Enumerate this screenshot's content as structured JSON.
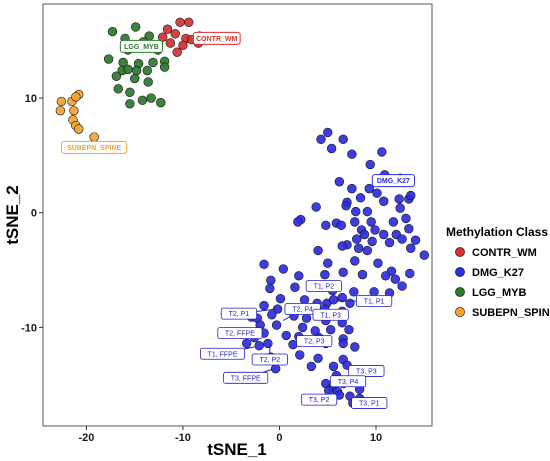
{
  "chart_data": {
    "type": "scatter",
    "xlabel": "tSNE_1",
    "ylabel": "tSNE_2",
    "xlim": [
      -24.5,
      15.8
    ],
    "ylim": [
      -18.6,
      18.2
    ],
    "xticks": [
      -20,
      -10,
      0,
      10
    ],
    "yticks": [
      -10,
      0,
      10
    ],
    "grid": false,
    "legend": {
      "title": "Methylation Class",
      "position": "right"
    },
    "series": [
      {
        "name": "CONTR_WM",
        "color": "#d62f2f",
        "points": [
          [
            -11.6,
            16.0
          ],
          [
            -10.3,
            16.6
          ],
          [
            -9.4,
            16.6
          ],
          [
            -12.1,
            15.3
          ],
          [
            -10.8,
            15.6
          ],
          [
            -9.7,
            15.2
          ],
          [
            -8.3,
            15.4
          ],
          [
            -11.3,
            14.8
          ],
          [
            -10.0,
            14.6
          ],
          [
            -9.1,
            15.1
          ],
          [
            -8.4,
            14.8
          ],
          [
            -10.6,
            14.0
          ]
        ]
      },
      {
        "name": "LGG_MYB",
        "color": "#2b7a2b",
        "points": [
          [
            -17.3,
            15.8
          ],
          [
            -14.9,
            16.2
          ],
          [
            -13.5,
            15.4
          ],
          [
            -16.0,
            15.2
          ],
          [
            -14.1,
            14.9
          ],
          [
            -15.7,
            14.2
          ],
          [
            -12.6,
            14.2
          ],
          [
            -17.7,
            13.4
          ],
          [
            -16.2,
            13.1
          ],
          [
            -14.6,
            13.0
          ],
          [
            -13.1,
            13.1
          ],
          [
            -11.9,
            13.2
          ],
          [
            -16.3,
            12.4
          ],
          [
            -15.7,
            12.5
          ],
          [
            -14.8,
            12.4
          ],
          [
            -13.7,
            12.4
          ],
          [
            -11.9,
            12.7
          ],
          [
            -16.9,
            11.9
          ],
          [
            -15.0,
            11.7
          ],
          [
            -13.6,
            11.4
          ],
          [
            -16.7,
            10.8
          ],
          [
            -15.5,
            10.5
          ],
          [
            -13.3,
            10.0
          ],
          [
            -15.5,
            9.5
          ],
          [
            -14.2,
            9.8
          ],
          [
            -12.3,
            9.6
          ]
        ]
      },
      {
        "name": "SUBEPN_SPINE",
        "color": "#f2a431",
        "points": [
          [
            -20.8,
            10.3
          ],
          [
            -22.6,
            9.7
          ],
          [
            -21.5,
            9.7
          ],
          [
            -21.1,
            10.1
          ],
          [
            -22.7,
            8.9
          ],
          [
            -21.3,
            8.9
          ],
          [
            -21.4,
            8.1
          ],
          [
            -21.1,
            7.6
          ],
          [
            -20.8,
            7.3
          ],
          [
            -19.2,
            6.6
          ]
        ]
      },
      {
        "name": "DMG_K27",
        "color": "#2d2de0",
        "points": [
          [
            5.0,
            7.0
          ],
          [
            4.3,
            6.4
          ],
          [
            6.6,
            6.4
          ],
          [
            5.4,
            5.6
          ],
          [
            7.5,
            5.1
          ],
          [
            10.6,
            5.3
          ],
          [
            9.4,
            4.2
          ],
          [
            10.9,
            3.3
          ],
          [
            12.5,
            3.0
          ],
          [
            6.2,
            2.7
          ],
          [
            7.5,
            2.1
          ],
          [
            9.3,
            2.1
          ],
          [
            10.1,
            1.7
          ],
          [
            12.4,
            1.2
          ],
          [
            13.4,
            1.2
          ],
          [
            8.4,
            1.3
          ],
          [
            10.8,
            1.0
          ],
          [
            7.0,
            0.9
          ],
          [
            3.8,
            0.5
          ],
          [
            6.9,
            0.6
          ],
          [
            7.9,
            0.1
          ],
          [
            9.1,
            0.1
          ],
          [
            12.5,
            0.4
          ],
          [
            13.6,
            1.5
          ],
          [
            5.9,
            -0.9
          ],
          [
            7.8,
            -0.8
          ],
          [
            9.5,
            -0.8
          ],
          [
            11.8,
            -0.8
          ],
          [
            13.1,
            -0.5
          ],
          [
            2.2,
            -0.6
          ],
          [
            1.9,
            -0.8
          ],
          [
            4.8,
            -1.1
          ],
          [
            6.4,
            -1.1
          ],
          [
            8.5,
            -1.5
          ],
          [
            9.9,
            -1.5
          ],
          [
            8.8,
            -1.9
          ],
          [
            10.8,
            -1.9
          ],
          [
            12.1,
            -1.9
          ],
          [
            13.4,
            -1.4
          ],
          [
            8.0,
            -2.3
          ],
          [
            7.0,
            -2.8
          ],
          [
            9.6,
            -2.5
          ],
          [
            11.4,
            -2.6
          ],
          [
            12.7,
            -2.3
          ],
          [
            14.1,
            -2.4
          ],
          [
            6.5,
            -2.9
          ],
          [
            4.0,
            -3.3
          ],
          [
            8.2,
            -3.1
          ],
          [
            9.1,
            -3.3
          ],
          [
            13.6,
            -3.1
          ],
          [
            15.0,
            -3.7
          ],
          [
            -1.6,
            -4.5
          ],
          [
            0.4,
            -4.9
          ],
          [
            5.0,
            -4.4
          ],
          [
            7.8,
            -4.2
          ],
          [
            10.2,
            -4.4
          ],
          [
            11.6,
            -5.1
          ],
          [
            13.5,
            -5.3
          ],
          [
            -0.9,
            -5.9
          ],
          [
            2.0,
            -5.5
          ],
          [
            4.7,
            -5.4
          ],
          [
            6.6,
            -5.2
          ],
          [
            8.6,
            -5.4
          ],
          [
            11.0,
            -5.5
          ],
          [
            12.0,
            -5.8
          ],
          [
            12.7,
            -6.4
          ],
          [
            -1.0,
            -6.6
          ],
          [
            1.6,
            -6.5
          ],
          [
            5.5,
            -6.8
          ],
          [
            6.5,
            -7.4
          ],
          [
            7.7,
            -6.9
          ],
          [
            9.8,
            -6.9
          ],
          [
            11.4,
            -7.0
          ],
          [
            0.1,
            -7.5
          ],
          [
            2.6,
            -7.6
          ],
          [
            3.9,
            -7.9
          ],
          [
            4.9,
            -7.9
          ],
          [
            5.6,
            -7.6
          ],
          [
            7.3,
            -7.9
          ],
          [
            -1.6,
            -8.1
          ],
          [
            -0.2,
            -8.4
          ],
          [
            1.9,
            -8.5
          ],
          [
            3.4,
            -8.5
          ],
          [
            4.7,
            -8.4
          ],
          [
            6.5,
            -8.6
          ],
          [
            -2.9,
            -9.1
          ],
          [
            -2.3,
            -9.2
          ],
          [
            -0.8,
            -8.9
          ],
          [
            1.5,
            -9.0
          ],
          [
            2.8,
            -9.2
          ],
          [
            4.8,
            -9.4
          ],
          [
            6.5,
            -9.6
          ],
          [
            -2.0,
            -9.8
          ],
          [
            -0.3,
            -9.8
          ],
          [
            2.4,
            -10.0
          ],
          [
            3.7,
            -10.3
          ],
          [
            5.3,
            -10.2
          ],
          [
            7.2,
            -10.2
          ],
          [
            -2.6,
            -10.9
          ],
          [
            -1.6,
            -10.5
          ],
          [
            0.7,
            -10.7
          ],
          [
            2.0,
            -10.8
          ],
          [
            4.1,
            -10.9
          ],
          [
            6.6,
            -11.0
          ],
          [
            -3.4,
            -11.4
          ],
          [
            -2.1,
            -11.6
          ],
          [
            -1.2,
            -11.4
          ],
          [
            1.4,
            -11.5
          ],
          [
            4.8,
            -11.4
          ],
          [
            6.6,
            -11.4
          ],
          [
            7.8,
            -11.7
          ],
          [
            -0.9,
            -12.6
          ],
          [
            2.1,
            -12.4
          ],
          [
            4.0,
            -12.7
          ],
          [
            6.6,
            -12.8
          ],
          [
            -0.4,
            -13.6
          ],
          [
            3.3,
            -13.4
          ],
          [
            5.6,
            -13.4
          ],
          [
            7.0,
            -13.3
          ],
          [
            5.9,
            -14.2
          ],
          [
            8.3,
            -14.2
          ],
          [
            4.8,
            -14.9
          ],
          [
            6.6,
            -14.9
          ],
          [
            8.3,
            -15.4
          ],
          [
            5.5,
            -15.2
          ],
          [
            6.0,
            -15.6
          ],
          [
            7.3,
            -16.0
          ],
          [
            7.6,
            -16.6
          ],
          [
            8.3,
            -16.2
          ],
          [
            6.2,
            -15.9
          ],
          [
            5.1,
            -15.5
          ]
        ]
      }
    ],
    "cluster_labels": [
      {
        "text": "CONTR_WM",
        "x": -6.5,
        "y": 15.2,
        "color": "#d62f2f"
      },
      {
        "text": "LGG_MYB",
        "x": -14.3,
        "y": 14.5,
        "color": "#2b7a2b"
      },
      {
        "text": "SUBEPN_SPINE",
        "x": -19.2,
        "y": 5.7,
        "color": "#f2a431"
      },
      {
        "text": "DMG_K27",
        "x": 11.8,
        "y": 2.8,
        "color": "#2d2de0"
      }
    ],
    "sample_labels": [
      {
        "text": "T1, P2",
        "x": 4.6,
        "y": -6.4,
        "px": 4.0,
        "py": -6.5
      },
      {
        "text": "T1, P1",
        "x": 9.8,
        "y": -7.7,
        "px": 5.6,
        "py": -7.7
      },
      {
        "text": "T2, P4",
        "x": 2.4,
        "y": -8.4,
        "px": 0.4,
        "py": -9.4
      },
      {
        "text": "T1, P3",
        "x": 5.3,
        "y": -8.9,
        "px": 4.3,
        "py": -8.6
      },
      {
        "text": "T2, P1",
        "x": -4.2,
        "y": -8.8,
        "px": -0.3,
        "py": -8.4
      },
      {
        "text": "T2, FFPE",
        "x": -4.1,
        "y": -10.5,
        "px": -1.6,
        "py": -10.5
      },
      {
        "text": "T2, P3",
        "x": 3.6,
        "y": -11.2,
        "px": 2.0,
        "py": -10.8
      },
      {
        "text": "T1, FFPE",
        "x": -5.9,
        "y": -12.3,
        "px": -2.6,
        "py": -11.7
      },
      {
        "text": "T2, P2",
        "x": -1.0,
        "y": -12.8,
        "px": -1.0,
        "py": -11.5
      },
      {
        "text": "T3, FFPE",
        "x": -3.5,
        "y": -14.4,
        "px": -0.5,
        "py": -13.6
      },
      {
        "text": "T3, P3",
        "x": 9.0,
        "y": -13.8,
        "px": 7.0,
        "py": -13.4
      },
      {
        "text": "T3, P4",
        "x": 7.1,
        "y": -14.7,
        "px": 6.0,
        "py": -14.3
      },
      {
        "text": "T3, P2",
        "x": 4.1,
        "y": -16.3,
        "px": 5.5,
        "py": -15.5
      },
      {
        "text": "T3, P1",
        "x": 9.3,
        "y": -16.6,
        "px": 7.6,
        "py": -16.2
      }
    ]
  }
}
